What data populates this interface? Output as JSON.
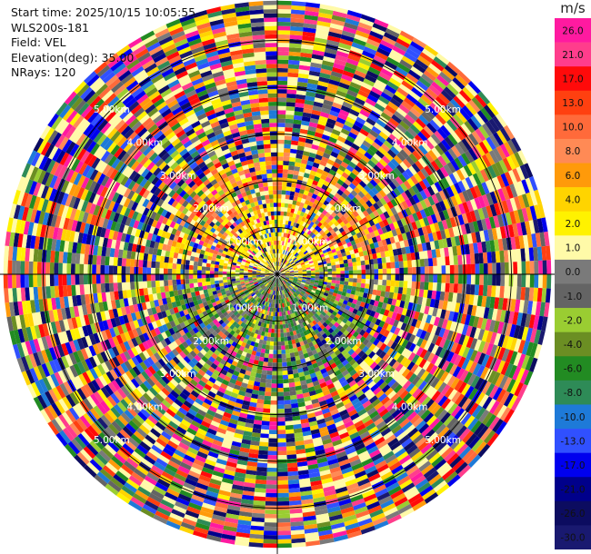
{
  "info": {
    "start_time": "Start time: 2025/10/15 10:05:55",
    "instrument": "WLS200s-181",
    "field": "Field: VEL",
    "elevation": "Elevation(deg): 35.00",
    "nrays": "NRays: 120"
  },
  "colorbar": {
    "unit": "m/s",
    "bins": [
      {
        "label": "26.0",
        "color": "#ff1aa0"
      },
      {
        "label": "21.0",
        "color": "#ff3d8c"
      },
      {
        "label": "17.0",
        "color": "#ff0a0a"
      },
      {
        "label": "13.0",
        "color": "#ff4010"
      },
      {
        "label": "10.0",
        "color": "#ff6a3a"
      },
      {
        "label": "8.0",
        "color": "#ff8a55"
      },
      {
        "label": "6.0",
        "color": "#ff9a0a"
      },
      {
        "label": "4.0",
        "color": "#ffd400"
      },
      {
        "label": "2.0",
        "color": "#fff200"
      },
      {
        "label": "1.0",
        "color": "#fffaa8"
      },
      {
        "label": "0.0",
        "color": "#7a7a7a"
      },
      {
        "label": "-1.0",
        "color": "#646464"
      },
      {
        "label": "-2.0",
        "color": "#9acd32"
      },
      {
        "label": "-4.0",
        "color": "#6b8e23"
      },
      {
        "label": "-6.0",
        "color": "#228b22"
      },
      {
        "label": "-8.0",
        "color": "#2e8b57"
      },
      {
        "label": "-10.0",
        "color": "#1e7ad8"
      },
      {
        "label": "-13.0",
        "color": "#3050ff"
      },
      {
        "label": "-17.0",
        "color": "#0000ee"
      },
      {
        "label": "-21.0",
        "color": "#00008b"
      },
      {
        "label": "-26.0",
        "color": "#0c0c60"
      },
      {
        "label": "-30.0",
        "color": "#191970"
      }
    ]
  },
  "chart_data": {
    "type": "polar_ppi",
    "field": "VEL",
    "units": "m/s",
    "elevation_deg": 35.0,
    "n_rays": 120,
    "range_rings_km": [
      1.0,
      2.0,
      3.0,
      4.0,
      5.0
    ],
    "range_ring_labels": [
      "1.00km",
      "2.00km",
      "3.00km",
      "4.00km",
      "5.00km"
    ],
    "max_range_km": 5.8,
    "near_field_pattern": "north sector (up to ~2.5 km) dominated by positive velocities 1-10 m/s (yellow/orange); south sector dominated by -1 to -8 m/s (greens); far field noisy across full scale",
    "color_scale_min": -30.0,
    "color_scale_max": 26.0
  }
}
